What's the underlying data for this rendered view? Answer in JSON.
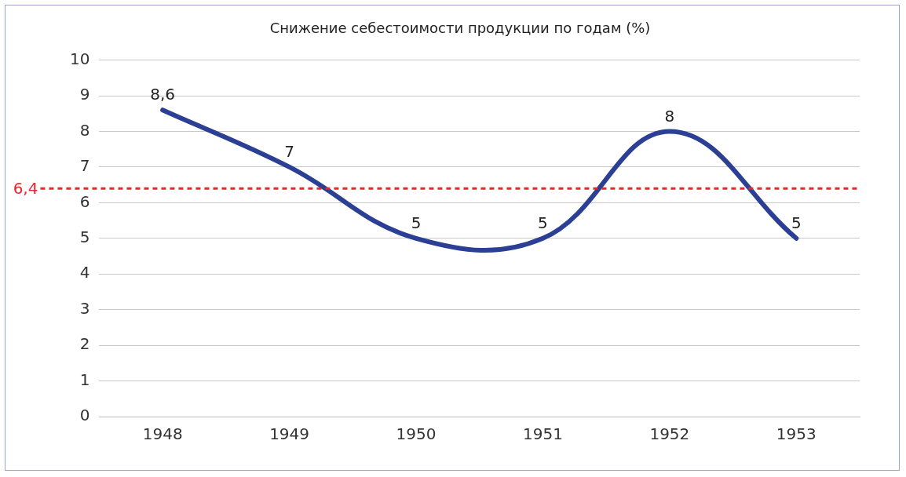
{
  "chart_data": {
    "type": "line",
    "title": "Снижение себестоимости продукции по годам (%)",
    "categories": [
      "1948",
      "1949",
      "1950",
      "1951",
      "1952",
      "1953"
    ],
    "series": [
      {
        "color": "#2b3f94",
        "values": [
          8.6,
          7,
          5,
          5,
          8,
          5
        ],
        "value_labels": [
          "8,6",
          "7",
          "5",
          "5",
          "8",
          "5"
        ]
      }
    ],
    "ylim": [
      0,
      10
    ],
    "yticks": [
      0,
      1,
      2,
      3,
      4,
      5,
      6,
      7,
      8,
      9,
      10
    ],
    "grid": "y",
    "legend": false,
    "marker": "none",
    "line_style": "solid",
    "ref_lines": [
      {
        "axis": "y",
        "value": 6.4,
        "label": "6,4",
        "color": "#e8262b",
        "line_style": "dashed"
      }
    ]
  }
}
